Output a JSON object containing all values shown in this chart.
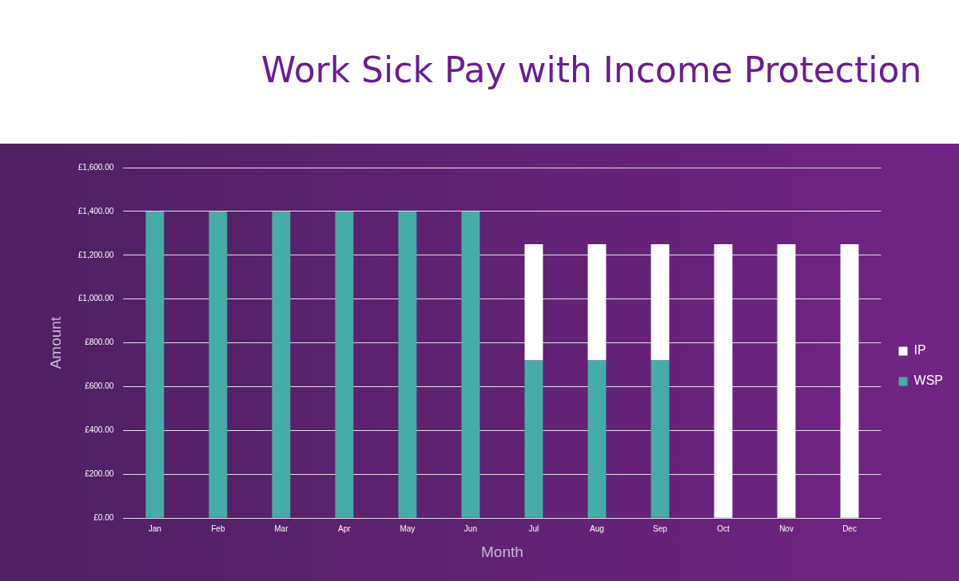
{
  "chart_data": {
    "type": "bar",
    "title": "Work Sick Pay with Income Protection",
    "xlabel": "Month",
    "ylabel": "Amount",
    "categories": [
      "Jan",
      "Feb",
      "Mar",
      "Apr",
      "May",
      "Jun",
      "Jul",
      "Aug",
      "Sep",
      "Oct",
      "Nov",
      "Dec"
    ],
    "stacked": true,
    "series": [
      {
        "name": "WSP",
        "color": "#45aca8",
        "values": [
          1400,
          1400,
          1400,
          1400,
          1400,
          1400,
          720,
          720,
          720,
          0,
          0,
          0
        ]
      },
      {
        "name": "IP",
        "color": "#ffffff",
        "values": [
          0,
          0,
          0,
          0,
          0,
          0,
          530,
          530,
          530,
          1250,
          1250,
          1250
        ]
      }
    ],
    "ylim": [
      0,
      1600
    ],
    "yticks": [
      {
        "value": 0,
        "label": "£0.00"
      },
      {
        "value": 200,
        "label": "£200.00"
      },
      {
        "value": 400,
        "label": "£400.00"
      },
      {
        "value": 600,
        "label": "£600.00"
      },
      {
        "value": 800,
        "label": "£800.00"
      },
      {
        "value": 1000,
        "label": "£1,000.00"
      },
      {
        "value": 1200,
        "label": "£1,200.00"
      },
      {
        "value": 1400,
        "label": "£1,400.00"
      },
      {
        "value": 1600,
        "label": "£1,600.00"
      }
    ],
    "grid": "y",
    "legend": "right"
  }
}
